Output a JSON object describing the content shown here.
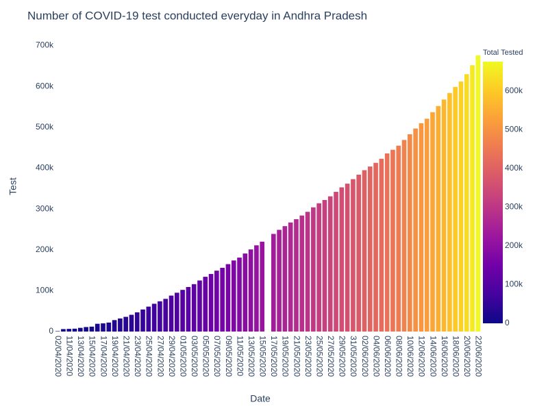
{
  "chart_data": {
    "type": "bar",
    "title": "Number of COVID-19 test conducted everyday in Andhra Pradesh",
    "xlabel": "Date",
    "ylabel": "Test",
    "categories": [
      "02/04/2020",
      null,
      "11/04/2020",
      null,
      "13/04/2020",
      null,
      "15/04/2020",
      null,
      "17/04/2020",
      null,
      "19/04/2020",
      null,
      "21/04/2020",
      null,
      "23/04/2020",
      null,
      "25/04/2020",
      null,
      "27/04/2020",
      null,
      "29/04/2020",
      null,
      "01/05/2020",
      null,
      "03/05/2020",
      null,
      "05/05/2020",
      null,
      "07/05/2020",
      null,
      "09/05/2020",
      null,
      "11/05/2020",
      null,
      "13/05/2020",
      null,
      "15/05/2020",
      null,
      "17/05/2020",
      null,
      "19/05/2020",
      null,
      "21/05/2020",
      null,
      "23/05/2020",
      null,
      "25/05/2020",
      null,
      "27/05/2020",
      null,
      "29/05/2020",
      null,
      "31/05/2020",
      null,
      "02/06/2020",
      null,
      "04/06/2020",
      null,
      "06/06/2020",
      null,
      "08/06/2020",
      null,
      "10/06/2020",
      null,
      "12/06/2020",
      null,
      "14/06/2020",
      null,
      "16/06/2020",
      null,
      "18/06/2020",
      null,
      "20/06/2020",
      null,
      "22/06/2020"
    ],
    "values": [
      1000,
      6000,
      6500,
      7000,
      9000,
      11000,
      12000,
      19000,
      20000,
      22000,
      28000,
      32000,
      36000,
      41000,
      47000,
      54000,
      61000,
      68000,
      74000,
      80000,
      88000,
      95000,
      102000,
      109000,
      116000,
      125000,
      134000,
      141000,
      149000,
      156000,
      165000,
      174000,
      181000,
      191000,
      201000,
      211000,
      220000,
      null,
      239000,
      249000,
      258000,
      267000,
      275000,
      284000,
      293000,
      304000,
      314000,
      322000,
      331000,
      342000,
      353000,
      362000,
      373000,
      384000,
      395000,
      404000,
      413000,
      423000,
      436000,
      445000,
      455000,
      469000,
      483000,
      497000,
      510000,
      521000,
      537000,
      552000,
      568000,
      584000,
      599000,
      612000,
      630000,
      652000,
      676000
    ],
    "ylim": [
      0,
      711000
    ],
    "yticks": [
      0,
      {
        "value": 100000,
        "label": "100k"
      },
      {
        "value": 200000,
        "label": "200k"
      },
      {
        "value": 300000,
        "label": "300k"
      },
      {
        "value": 400000,
        "label": "400k"
      },
      {
        "value": 500000,
        "label": "500k"
      },
      {
        "value": 600000,
        "label": "600k"
      },
      {
        "value": 700000,
        "label": "700k"
      }
    ],
    "grid": false,
    "colorbar": {
      "title": "Total Tested",
      "clim": [
        0,
        676000
      ],
      "colorscale": [
        "#0d0887",
        "#46039f",
        "#7201a8",
        "#9c179e",
        "#bd3786",
        "#d8576b",
        "#ed7953",
        "#fb9f3a",
        "#fdca26",
        "#f0f921"
      ],
      "ticks": [
        0,
        {
          "value": 100000,
          "label": "100k"
        },
        {
          "value": 200000,
          "label": "200k"
        },
        {
          "value": 300000,
          "label": "300k"
        },
        {
          "value": 400000,
          "label": "400k"
        },
        {
          "value": 500000,
          "label": "500k"
        },
        {
          "value": 600000,
          "label": "600k"
        }
      ]
    }
  }
}
